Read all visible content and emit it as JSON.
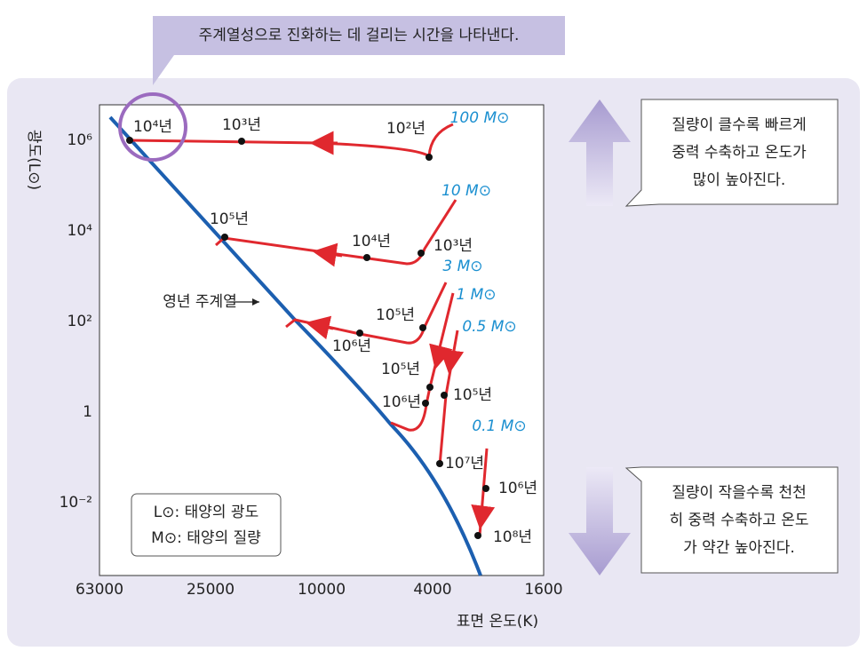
{
  "callout": "주계열성으로 진화하는 데 걸리는 시간을 나타낸다.",
  "y_axis": {
    "label": "광도(L⊙)",
    "ticks": [
      "10⁶",
      "10⁴",
      "10²",
      "1",
      "10⁻²"
    ]
  },
  "x_axis": {
    "label": "표면 온도(K)",
    "ticks": [
      "63000",
      "25000",
      "10000",
      "4000",
      "1600"
    ]
  },
  "main_sequence_label": "영년 주계열",
  "tracks": [
    {
      "mass": "100 M⊙",
      "times": [
        "10²년",
        "10³년",
        "10⁴년"
      ]
    },
    {
      "mass": "10 M⊙",
      "times": [
        "10³년",
        "10⁴년",
        "10⁵년"
      ]
    },
    {
      "mass": "3 M⊙",
      "times": [
        "10⁵년",
        "10⁶년"
      ]
    },
    {
      "mass": "1 M⊙",
      "times": [
        "10⁵년",
        "10⁶년"
      ]
    },
    {
      "mass": "0.5 M⊙",
      "times": [
        "10⁵년",
        "10⁷년"
      ]
    },
    {
      "mass": "0.1 M⊙",
      "times": [
        "10⁶년",
        "10⁸년"
      ]
    }
  ],
  "legend": [
    "L⊙: 태양의 광도",
    "M⊙: 태양의 질량"
  ],
  "notes": [
    {
      "lines": [
        "질량이 클수록 빠르게",
        "중력 수축하고 온도가",
        "많이 높아진다."
      ]
    },
    {
      "lines": [
        "질량이 작을수록 천천",
        "히 중력 수축하고 온도",
        "가 약간 높아진다."
      ]
    }
  ]
}
